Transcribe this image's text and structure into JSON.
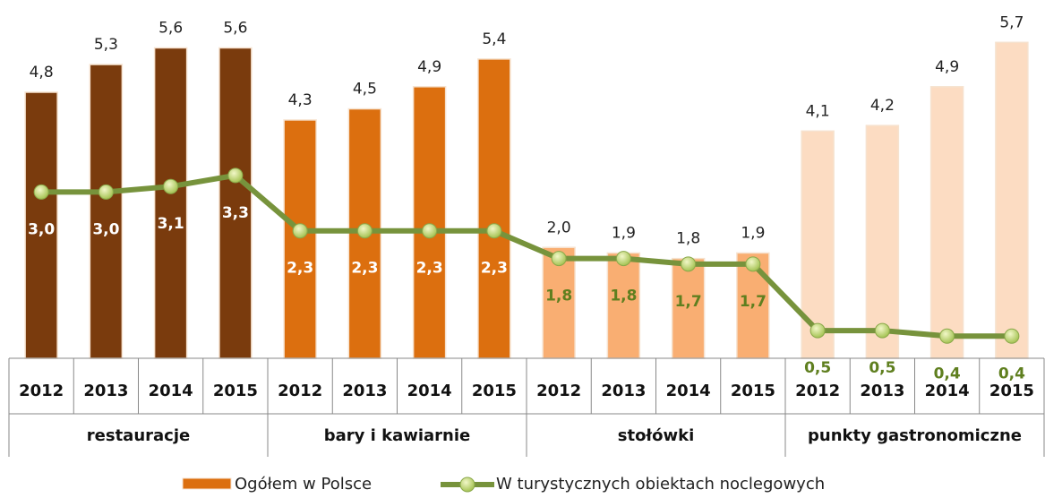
{
  "chart_data": {
    "type": "bar_line",
    "groups": [
      {
        "label": "restauracje",
        "color": "#7a3b0d",
        "line_label_color": "#ffffff",
        "categories": [
          "2012",
          "2013",
          "2014",
          "2015"
        ]
      },
      {
        "label": "bary i kawiarnie",
        "color": "#dc6f0f",
        "line_label_color": "#ffffff",
        "categories": [
          "2012",
          "2013",
          "2014",
          "2015"
        ]
      },
      {
        "label": "stołówki",
        "color": "#f9ae72",
        "line_label_color": "#5f7f1f",
        "categories": [
          "2012",
          "2013",
          "2014",
          "2015"
        ]
      },
      {
        "label": "punkty gastronomiczne",
        "color": "#fcdcc2",
        "line_label_color": "#5f7f1f",
        "categories": [
          "2012",
          "2013",
          "2014",
          "2015"
        ]
      }
    ],
    "series": [
      {
        "name": "Ogółem w Polsce",
        "kind": "bar",
        "color": "#dc6f0f",
        "values": [
          4.8,
          5.3,
          5.6,
          5.6,
          4.3,
          4.5,
          4.9,
          5.4,
          2.0,
          1.9,
          1.8,
          1.9,
          4.1,
          4.2,
          4.9,
          5.7
        ],
        "value_labels": [
          "4,8",
          "5,3",
          "5,6",
          "5,6",
          "4,3",
          "4,5",
          "4,9",
          "5,4",
          "2,0",
          "1,9",
          "1,8",
          "1,9",
          "4,1",
          "4,2",
          "4,9",
          "5,7"
        ]
      },
      {
        "name": "W turystycznych obiektach noclegowych",
        "kind": "line",
        "color": "#77933c",
        "values": [
          3.0,
          3.0,
          3.1,
          3.3,
          2.3,
          2.3,
          2.3,
          2.3,
          1.8,
          1.8,
          1.7,
          1.7,
          0.5,
          0.5,
          0.4,
          0.4
        ],
        "value_labels": [
          "3,0",
          "3,0",
          "3,1",
          "3,3",
          "2,3",
          "2,3",
          "2,3",
          "2,3",
          "1,8",
          "1,8",
          "1,7",
          "1,7",
          "0,5",
          "0,5",
          "0,4",
          "0,4"
        ]
      }
    ],
    "ylim": [
      0,
      6.4
    ]
  }
}
